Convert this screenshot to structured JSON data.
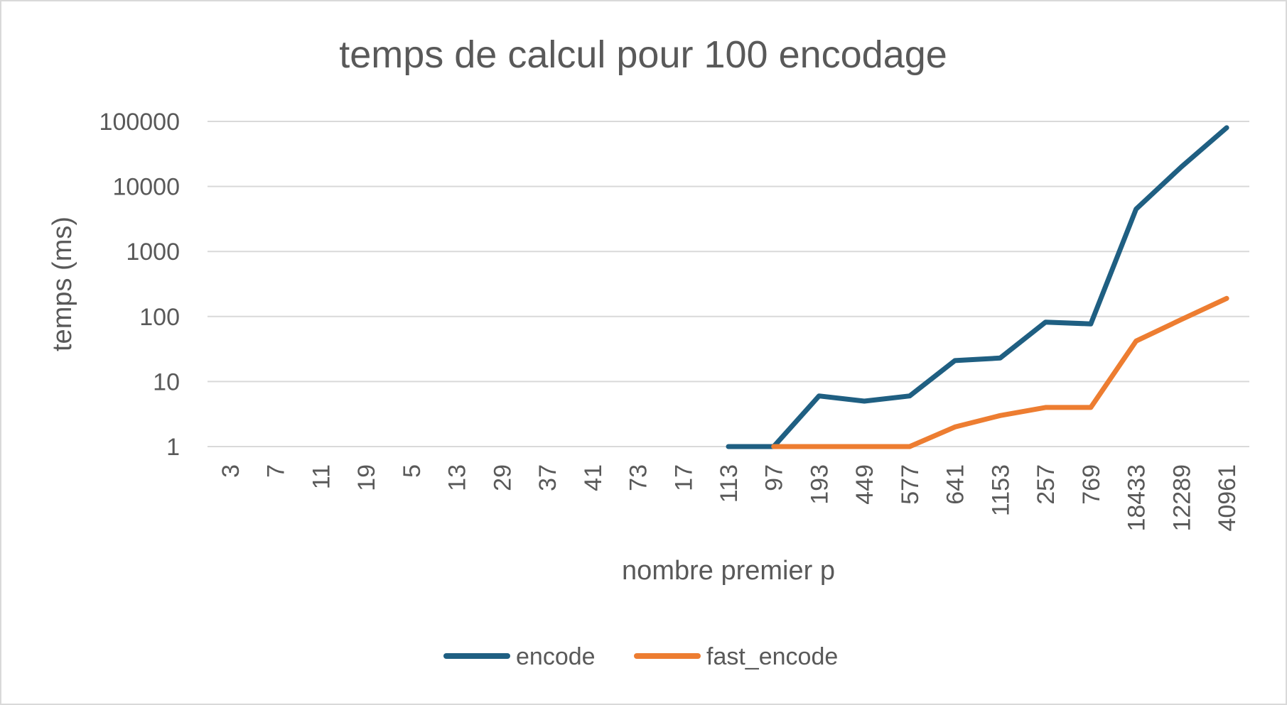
{
  "chart_data": {
    "type": "line",
    "title": "temps de calcul pour 100 encodage",
    "xlabel": "nombre premier p",
    "ylabel": "temps (ms)",
    "y_scale": "log",
    "ylim": [
      1,
      100000
    ],
    "y_ticks": [
      "1",
      "10",
      "100",
      "1000",
      "10000",
      "100000"
    ],
    "grid": true,
    "legend_position": "bottom",
    "categories": [
      "3",
      "7",
      "11",
      "19",
      "5",
      "13",
      "29",
      "37",
      "41",
      "73",
      "17",
      "113",
      "97",
      "193",
      "449",
      "577",
      "641",
      "1153",
      "257",
      "769",
      "18433",
      "12289",
      "40961"
    ],
    "series": [
      {
        "name": "encode",
        "color": "#1f5f82",
        "values": [
          null,
          null,
          null,
          null,
          null,
          null,
          null,
          null,
          null,
          null,
          null,
          1,
          1,
          6,
          5,
          6,
          21,
          23,
          82,
          77,
          4500,
          20000,
          80000
        ]
      },
      {
        "name": "fast_encode",
        "color": "#ed7d31",
        "values": [
          null,
          null,
          null,
          null,
          null,
          null,
          null,
          null,
          null,
          null,
          null,
          null,
          1,
          1,
          1,
          1,
          2,
          3,
          4,
          4,
          42,
          90,
          190
        ]
      }
    ]
  }
}
